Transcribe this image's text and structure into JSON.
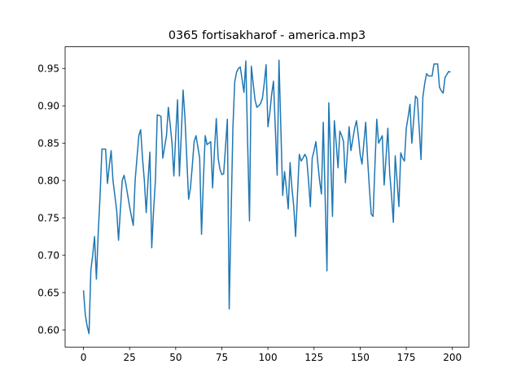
{
  "chart_data": {
    "type": "line",
    "title": "0365 fortisakharof - america.mp3",
    "x": [
      0,
      1,
      2,
      3,
      4,
      5,
      6,
      7,
      8,
      9,
      10,
      11,
      12,
      13,
      14,
      15,
      16,
      17,
      18,
      19,
      20,
      21,
      22,
      23,
      24,
      25,
      26,
      27,
      28,
      29,
      30,
      31,
      32,
      33,
      34,
      35,
      36,
      37,
      38,
      39,
      40,
      41,
      42,
      43,
      44,
      45,
      46,
      47,
      48,
      49,
      50,
      51,
      52,
      53,
      54,
      55,
      56,
      57,
      58,
      59,
      60,
      61,
      62,
      63,
      64,
      65,
      66,
      67,
      68,
      69,
      70,
      71,
      72,
      73,
      74,
      75,
      76,
      77,
      78,
      79,
      80,
      81,
      82,
      83,
      84,
      85,
      86,
      87,
      88,
      89,
      90,
      91,
      92,
      93,
      94,
      95,
      96,
      97,
      98,
      99,
      100,
      101,
      102,
      103,
      104,
      105,
      106,
      107,
      108,
      109,
      110,
      111,
      112,
      113,
      114,
      115,
      116,
      117,
      118,
      119,
      120,
      121,
      122,
      123,
      124,
      125,
      126,
      127,
      128,
      129,
      130,
      131,
      132,
      133,
      134,
      135,
      136,
      137,
      138,
      139,
      140,
      141,
      142,
      143,
      144,
      145,
      146,
      147,
      148,
      149,
      150,
      151,
      152,
      153,
      154,
      155,
      156,
      157,
      158,
      159,
      160,
      161,
      162,
      163,
      164,
      165,
      166,
      167,
      168,
      169,
      170,
      171,
      172,
      173,
      174,
      175,
      176,
      177,
      178,
      179,
      180,
      181,
      182,
      183,
      184,
      185,
      186,
      187,
      188,
      189,
      190,
      191,
      192,
      193,
      194,
      195,
      196,
      197,
      198,
      199
    ],
    "series": [
      {
        "color": "#1f77b4",
        "values": [
          0.653,
          0.62,
          0.605,
          0.595,
          0.68,
          0.7,
          0.725,
          0.668,
          0.73,
          0.78,
          0.842,
          0.842,
          0.842,
          0.796,
          0.82,
          0.84,
          0.8,
          0.78,
          0.76,
          0.72,
          0.76,
          0.8,
          0.807,
          0.795,
          0.78,
          0.765,
          0.752,
          0.74,
          0.8,
          0.83,
          0.86,
          0.868,
          0.83,
          0.8,
          0.757,
          0.8,
          0.838,
          0.71,
          0.76,
          0.8,
          0.888,
          0.887,
          0.886,
          0.83,
          0.845,
          0.86,
          0.898,
          0.875,
          0.85,
          0.806,
          0.86,
          0.908,
          0.806,
          0.86,
          0.921,
          0.885,
          0.83,
          0.775,
          0.79,
          0.82,
          0.852,
          0.86,
          0.845,
          0.83,
          0.728,
          0.8,
          0.86,
          0.848,
          0.85,
          0.852,
          0.79,
          0.84,
          0.883,
          0.83,
          0.815,
          0.808,
          0.809,
          0.845,
          0.882,
          0.628,
          0.75,
          0.87,
          0.932,
          0.945,
          0.95,
          0.952,
          0.935,
          0.918,
          0.96,
          0.85,
          0.746,
          0.953,
          0.93,
          0.908,
          0.898,
          0.9,
          0.903,
          0.91,
          0.93,
          0.955,
          0.872,
          0.89,
          0.915,
          0.933,
          0.87,
          0.807,
          0.961,
          0.87,
          0.78,
          0.812,
          0.79,
          0.762,
          0.824,
          0.79,
          0.765,
          0.725,
          0.78,
          0.835,
          0.826,
          0.83,
          0.835,
          0.83,
          0.8,
          0.765,
          0.83,
          0.84,
          0.852,
          0.825,
          0.8,
          0.782,
          0.878,
          0.78,
          0.679,
          0.904,
          0.83,
          0.752,
          0.88,
          0.85,
          0.817,
          0.866,
          0.86,
          0.852,
          0.797,
          0.835,
          0.872,
          0.84,
          0.855,
          0.87,
          0.88,
          0.86,
          0.835,
          0.822,
          0.85,
          0.878,
          0.83,
          0.79,
          0.755,
          0.752,
          0.82,
          0.882,
          0.85,
          0.855,
          0.86,
          0.794,
          0.83,
          0.87,
          0.81,
          0.78,
          0.744,
          0.833,
          0.8,
          0.765,
          0.837,
          0.83,
          0.826,
          0.87,
          0.885,
          0.902,
          0.85,
          0.88,
          0.913,
          0.91,
          0.87,
          0.828,
          0.912,
          0.93,
          0.943,
          0.94,
          0.94,
          0.94,
          0.956,
          0.956,
          0.956,
          0.925,
          0.92,
          0.917,
          0.938,
          0.942,
          0.946,
          0.945
        ]
      }
    ],
    "xlim": [
      -9.95,
      208.95
    ],
    "ylim": [
      0.577,
      0.979
    ],
    "xticks": [
      0,
      25,
      50,
      75,
      100,
      125,
      150,
      175,
      200
    ],
    "yticks": [
      {
        "value": 0.6,
        "label": "0.60"
      },
      0.65,
      {
        "value": 0.7,
        "label": "0.70"
      },
      0.75,
      {
        "value": 0.8,
        "label": "0.80"
      },
      0.85,
      {
        "value": 0.9,
        "label": "0.90"
      },
      0.95
    ]
  }
}
